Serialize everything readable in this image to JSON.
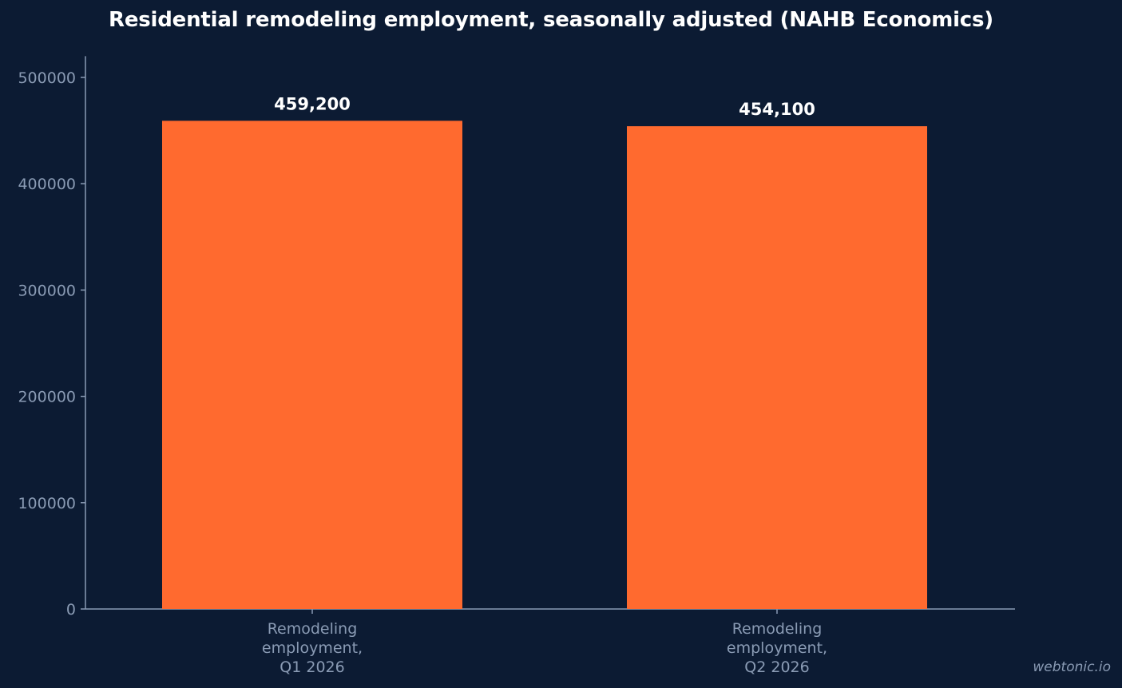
{
  "chart_data": {
    "type": "bar",
    "title": "Residential remodeling employment, seasonally adjusted (NAHB Economics)",
    "categories": [
      [
        "Remodeling",
        "employment,",
        "Q1 2026"
      ],
      [
        "Remodeling",
        "employment,",
        "Q2 2026"
      ]
    ],
    "values": [
      459200,
      454100
    ],
    "value_labels": [
      "459,200",
      "454,100"
    ],
    "yticks": [
      "0",
      "100000",
      "200000",
      "300000",
      "400000",
      "500000"
    ],
    "ylim": [
      0,
      520000
    ],
    "xlabel": "",
    "ylabel": "",
    "grid": false,
    "bar_color": "#ff6a2f",
    "axis_color": "#8a9bb4",
    "background": "#0c1b33"
  },
  "watermark": "webtonic.io"
}
